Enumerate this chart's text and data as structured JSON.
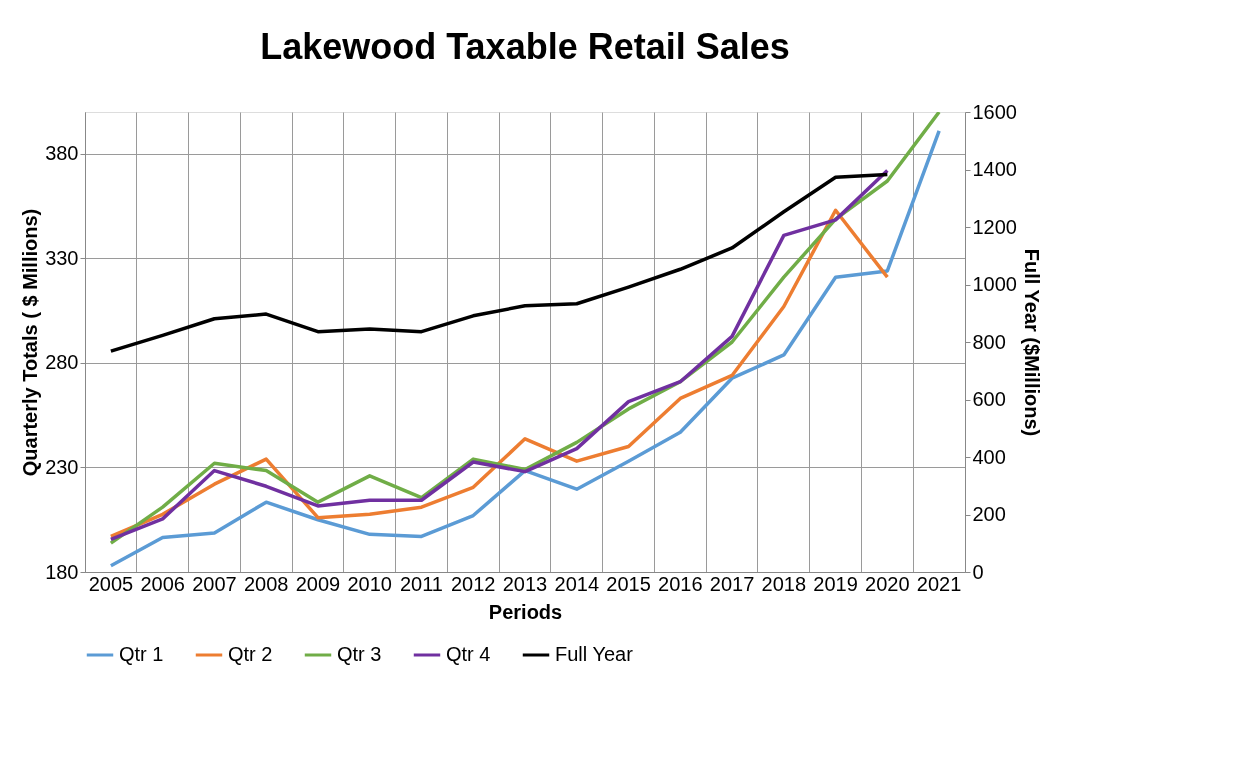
{
  "chart_data": {
    "type": "line",
    "title": "Lakewood Taxable Retail Sales",
    "xlabel": "Periods",
    "ylabel": "Quarterly Totals    ( $ Millions)",
    "y2label": "Full Year ($Millions)",
    "categories": [
      "2005",
      "2006",
      "2007",
      "2008",
      "2009",
      "2010",
      "2011",
      "2012",
      "2013",
      "2014",
      "2015",
      "2016",
      "2017",
      "2018",
      "2019",
      "2020",
      "2021"
    ],
    "series": [
      {
        "name": "Qtr 1",
        "color": "#5b9bd5",
        "values": [
          183,
          196.5,
          198.7,
          213.4,
          205,
          198,
          197,
          207,
          228.5,
          219.6,
          233,
          246.8,
          272.7,
          283.8,
          321,
          324,
          391
        ]
      },
      {
        "name": "Qtr 2",
        "color": "#ed7d31",
        "values": [
          197,
          207.6,
          222,
          234,
          206,
          207.6,
          211,
          220.5,
          243.7,
          233,
          240,
          263,
          274,
          307,
          353,
          321,
          null
        ]
      },
      {
        "name": "Qtr 3",
        "color": "#70ad47",
        "values": [
          193.8,
          211,
          232,
          228.5,
          213.4,
          226,
          215.6,
          234,
          229,
          242,
          258,
          271,
          290,
          321,
          348.8,
          367,
          400
        ]
      },
      {
        "name": "Qtr 4",
        "color": "#7030a0",
        "values": [
          195.6,
          205.4,
          228.5,
          221,
          211.6,
          214.3,
          214.3,
          232.6,
          228,
          239,
          261.5,
          271,
          292.7,
          341,
          348.4,
          372,
          null
        ]
      },
      {
        "name": "Full Year",
        "color": "#000000",
        "axis": "y2",
        "values": [
          768,
          823,
          881,
          897,
          836,
          845,
          836,
          891,
          926,
          933,
          991,
          1053,
          1127,
          1253,
          1373,
          1383,
          null
        ]
      }
    ],
    "ylim": [
      180,
      400
    ],
    "yticks": [
      180,
      230,
      280,
      330,
      380
    ],
    "y2lim": [
      0,
      1600
    ],
    "y2ticks": [
      0,
      200,
      400,
      600,
      800,
      1000,
      1200,
      1400,
      1600
    ],
    "grid": true,
    "legend": "bottom"
  }
}
